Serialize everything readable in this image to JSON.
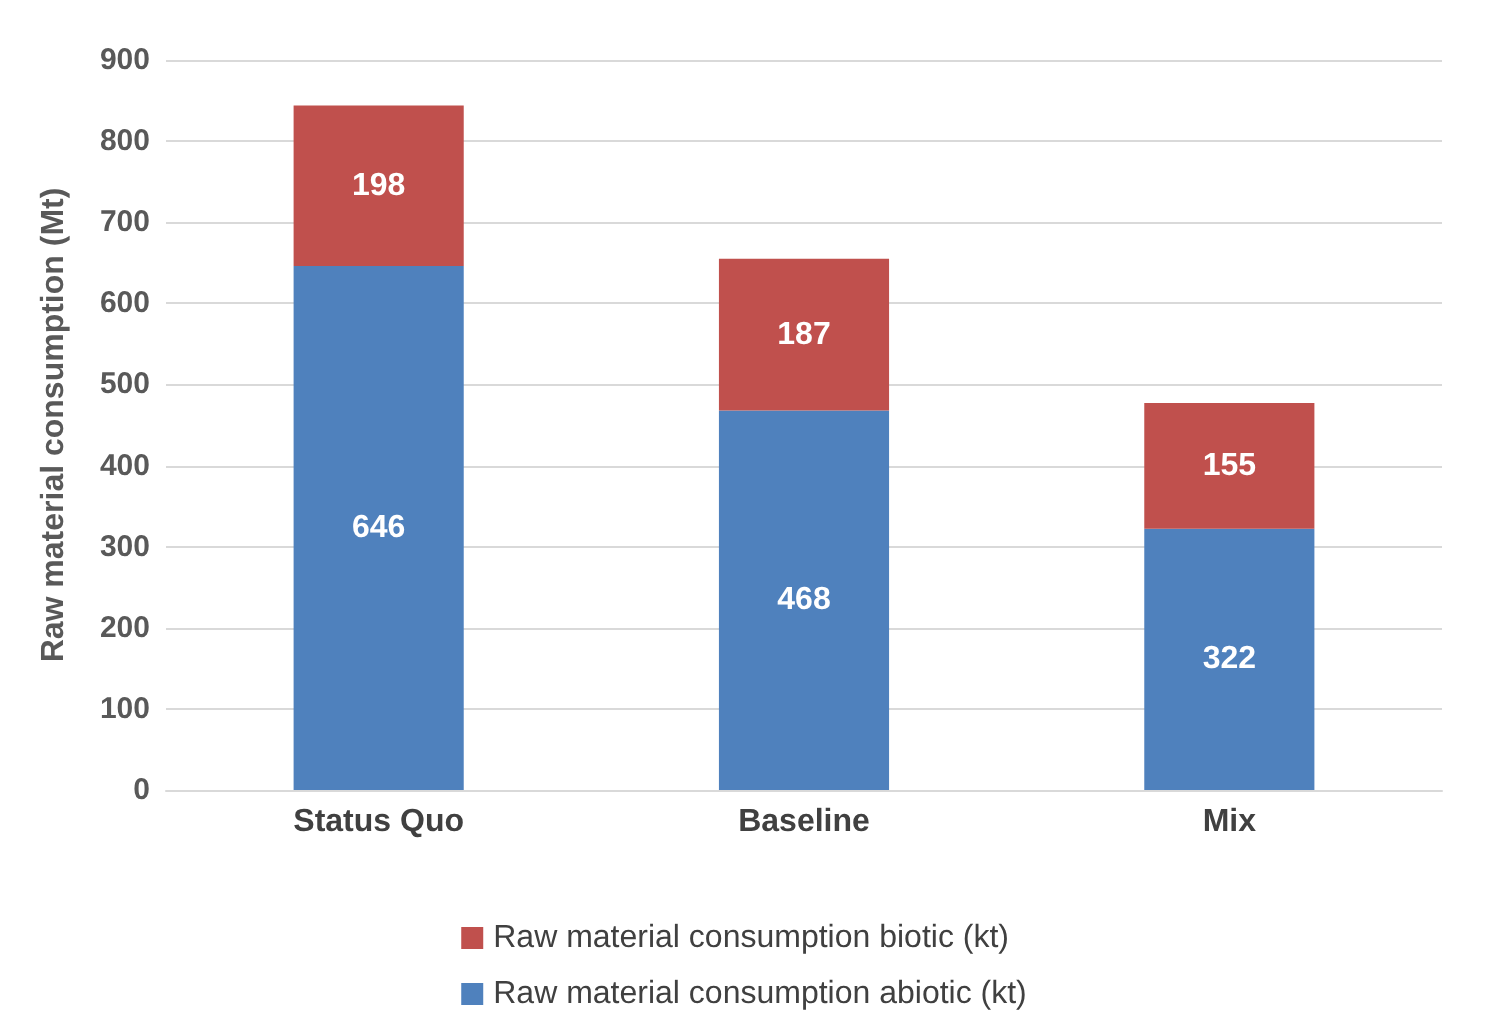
{
  "chart_data": {
    "type": "bar",
    "ylabel": "Raw material consumption (Mt)",
    "categories": [
      "Status Quo",
      "Baseline",
      "Mix"
    ],
    "stacked": true,
    "data_labels": true,
    "grid": "y",
    "legend": "bottom",
    "ylim": [
      0,
      900
    ],
    "yticks": [
      0,
      100,
      200,
      300,
      400,
      500,
      600,
      700,
      800,
      900
    ],
    "series": [
      {
        "name": "Raw material consumption abiotic (kt)",
        "color": "#4f81bd",
        "values": [
          646,
          468,
          322
        ]
      },
      {
        "name": "Raw material consumption biotic (kt)",
        "color": "#c0504d",
        "values": [
          198,
          187,
          155
        ]
      }
    ]
  }
}
